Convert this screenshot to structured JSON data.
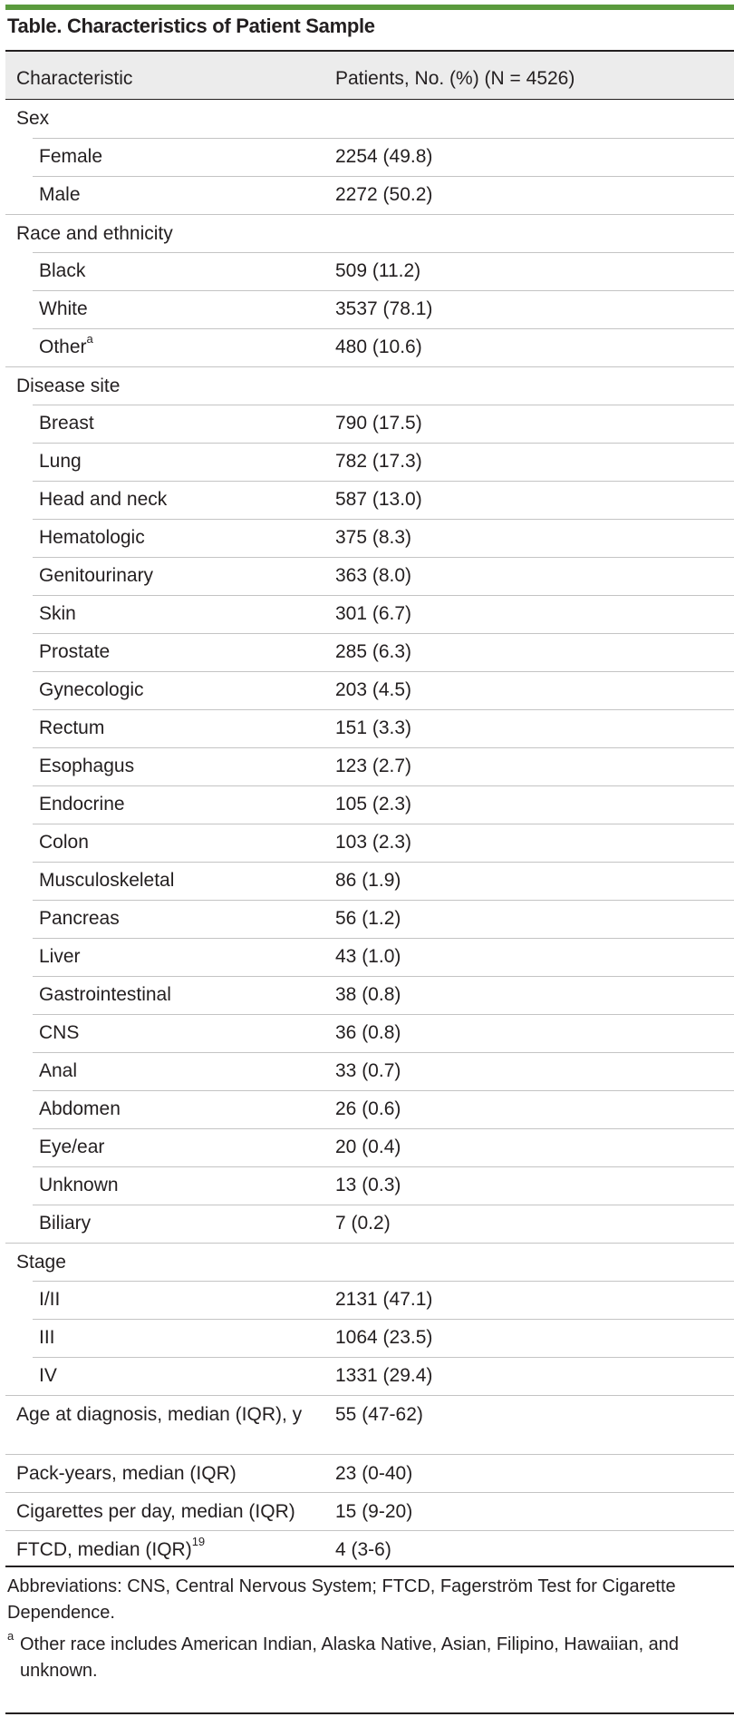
{
  "table": {
    "title": "Table. Characteristics of Patient Sample",
    "col_characteristic": "Characteristic",
    "col_patients": "Patients, No. (%) (N = 4526)",
    "rows": [
      {
        "label": "Sex",
        "value": ""
      },
      {
        "label": "Female",
        "value": "2254 (49.8)"
      },
      {
        "label": "Male",
        "value": "2272 (50.2)"
      },
      {
        "label": "Race and ethnicity",
        "value": ""
      },
      {
        "label": "Black",
        "value": "509 (11.2)"
      },
      {
        "label": "White",
        "value": "3537 (78.1)"
      },
      {
        "label": "Other",
        "value": "480 (10.6)",
        "sup": "a"
      },
      {
        "label": "Disease site",
        "value": ""
      },
      {
        "label": "Breast",
        "value": "790 (17.5)"
      },
      {
        "label": "Lung",
        "value": "782 (17.3)"
      },
      {
        "label": "Head and neck",
        "value": "587 (13.0)"
      },
      {
        "label": "Hematologic",
        "value": "375 (8.3)"
      },
      {
        "label": "Genitourinary",
        "value": "363 (8.0)"
      },
      {
        "label": "Skin",
        "value": "301 (6.7)"
      },
      {
        "label": "Prostate",
        "value": "285 (6.3)"
      },
      {
        "label": "Gynecologic",
        "value": "203 (4.5)"
      },
      {
        "label": "Rectum",
        "value": "151 (3.3)"
      },
      {
        "label": "Esophagus",
        "value": "123 (2.7)"
      },
      {
        "label": "Endocrine",
        "value": "105 (2.3)"
      },
      {
        "label": "Colon",
        "value": "103 (2.3)"
      },
      {
        "label": "Musculoskeletal",
        "value": "86 (1.9)"
      },
      {
        "label": "Pancreas",
        "value": "56 (1.2)"
      },
      {
        "label": "Liver",
        "value": "43 (1.0)"
      },
      {
        "label": "Gastrointestinal",
        "value": "38 (0.8)"
      },
      {
        "label": "CNS",
        "value": "36 (0.8)"
      },
      {
        "label": "Anal",
        "value": "33 (0.7)"
      },
      {
        "label": "Abdomen",
        "value": "26 (0.6)"
      },
      {
        "label": "Eye/ear",
        "value": "20 (0.4)"
      },
      {
        "label": "Unknown",
        "value": "13 (0.3)"
      },
      {
        "label": "Biliary",
        "value": "7 (0.2)"
      },
      {
        "label": "Stage",
        "value": ""
      },
      {
        "label": "I/II",
        "value": "2131 (47.1)"
      },
      {
        "label": "III",
        "value": "1064 (23.5)"
      },
      {
        "label": "IV",
        "value": "1331 (29.4)"
      },
      {
        "label": "Age at diagnosis, median (IQR), y",
        "value": "55 (47-62)"
      },
      {
        "label": "Pack-years, median (IQR)",
        "value": "23 (0-40)"
      },
      {
        "label": "Cigarettes per day, median (IQR)",
        "value": "15 (9-20)"
      },
      {
        "label": "FTCD, median (IQR)",
        "value": "4 (3-6)",
        "sup": "19"
      }
    ],
    "abbreviations": "Abbreviations: CNS, Central Nervous System; FTCD, Fagerström Test for Cigarette Dependence.",
    "footnote_marker": "a",
    "footnote_text": "Other race includes American Indian, Alaska Native, Asian, Filipino, Hawaiian, and unknown."
  },
  "colors": {
    "accent_rule": "#5a9a3d",
    "header_fill": "#ececec",
    "text": "#231f20"
  }
}
